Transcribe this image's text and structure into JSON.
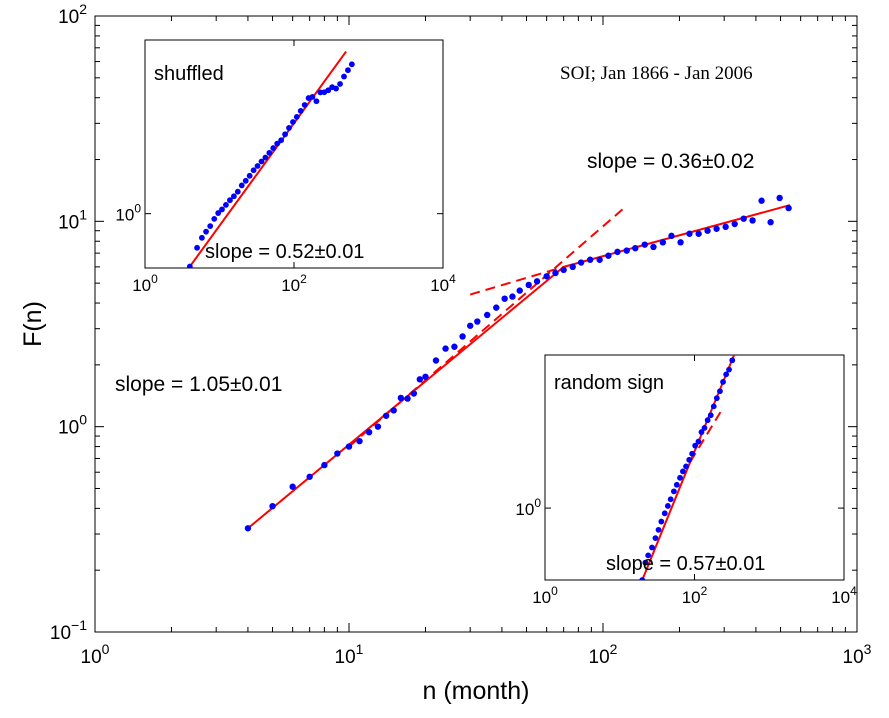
{
  "chart_data": [
    {
      "type": "scatter",
      "id": "main",
      "xlabel": "n (month)",
      "ylabel": "F(n)",
      "x_scale": "log",
      "y_scale": "log",
      "xlim": [
        1,
        1000
      ],
      "ylim": [
        0.1,
        100
      ],
      "x_ticks": [
        {
          "base": "10",
          "exp": "0",
          "value": 1
        },
        {
          "base": "10",
          "exp": "1",
          "value": 10
        },
        {
          "base": "10",
          "exp": "2",
          "value": 100
        },
        {
          "base": "10",
          "exp": "3",
          "value": 1000
        }
      ],
      "y_ticks": [
        {
          "base": "10",
          "exp": "−1",
          "value": 0.1
        },
        {
          "base": "10",
          "exp": "0",
          "value": 1
        },
        {
          "base": "10",
          "exp": "1",
          "value": 10
        },
        {
          "base": "10",
          "exp": "2",
          "value": 100
        }
      ],
      "grid": false,
      "annotations": [
        {
          "text": "SOI; Jan 1866 - Jan 2006",
          "style": "serif"
        },
        {
          "text": "slope  = 0.36±0.02"
        },
        {
          "text": "slope  = 1.05±0.01"
        }
      ],
      "points_color": "#0000ff",
      "line_color": "#ff0000",
      "series": [
        {
          "kind": "points",
          "x": [
            4,
            5,
            6,
            7,
            8,
            9,
            10,
            11,
            12,
            13,
            14,
            15,
            16,
            17,
            18,
            19,
            20,
            22,
            24,
            26,
            28,
            30,
            32,
            35,
            38,
            41,
            44,
            47,
            51,
            55,
            60,
            65,
            70,
            76,
            82,
            89,
            97,
            105,
            114,
            124,
            134,
            146,
            158,
            172,
            186,
            202,
            219,
            238,
            258,
            280,
            304,
            330,
            358,
            388,
            421,
            457,
            496,
            538
          ],
          "y": [
            0.32,
            0.41,
            0.51,
            0.57,
            0.65,
            0.74,
            0.8,
            0.85,
            0.94,
            1.0,
            1.13,
            1.2,
            1.38,
            1.37,
            1.45,
            1.7,
            1.75,
            2.1,
            2.4,
            2.45,
            2.75,
            3.1,
            3.25,
            3.5,
            3.8,
            4.2,
            4.3,
            4.6,
            4.9,
            5.1,
            5.4,
            5.6,
            5.8,
            6.0,
            6.3,
            6.5,
            6.5,
            6.8,
            7.1,
            7.2,
            7.4,
            7.7,
            7.5,
            7.9,
            8.5,
            7.9,
            8.7,
            8.7,
            9.0,
            9.2,
            9.4,
            9.7,
            10.3,
            10.1,
            12.6,
            9.9,
            13.0,
            11.6
          ]
        },
        {
          "kind": "line",
          "style": "solid",
          "x": [
            4,
            70
          ],
          "y": [
            0.32,
            6.0
          ]
        },
        {
          "kind": "line",
          "style": "dashed",
          "x": [
            10,
            120
          ],
          "y": [
            0.8,
            11.5
          ]
        },
        {
          "kind": "line",
          "style": "solid",
          "x": [
            70,
            545
          ],
          "y": [
            6.0,
            12.0
          ]
        },
        {
          "kind": "line",
          "style": "dashed",
          "x": [
            30,
            70
          ],
          "y": [
            4.4,
            6.0
          ]
        }
      ]
    },
    {
      "type": "scatter",
      "id": "inset-shuffled",
      "title": "shuffled",
      "annotation": "slope = 0.52±0.01",
      "x_scale": "log",
      "y_scale": "log",
      "xlim": [
        1,
        10000
      ],
      "x_ticks": [
        {
          "base": "10",
          "exp": "0",
          "value": 1
        },
        {
          "base": "10",
          "exp": "2",
          "value": 100
        },
        {
          "base": "10",
          "exp": "4",
          "value": 10000
        }
      ],
      "y_ticks": [
        {
          "base": "10",
          "exp": "0",
          "value": 1
        }
      ],
      "series": [
        {
          "kind": "points",
          "x": [
            4,
            5,
            5.8,
            6.6,
            7.5,
            8.5,
            9.6,
            10.8,
            12.2,
            13.8,
            15.6,
            17.6,
            19.9,
            22.5,
            25.4,
            28.7,
            32.4,
            36.6,
            41.3,
            46.7,
            52.7,
            59.5,
            67.2,
            75.9,
            85.7,
            96.8,
            109,
            123,
            139,
            157,
            177,
            200,
            226,
            255,
            288,
            325,
            367,
            415,
            469,
            530,
            598
          ],
          "y": [
            0.43,
            0.58,
            0.68,
            0.75,
            0.82,
            0.92,
            1.01,
            1.07,
            1.15,
            1.24,
            1.32,
            1.42,
            1.57,
            1.69,
            1.83,
            2.0,
            2.14,
            2.3,
            2.45,
            2.64,
            2.85,
            3.06,
            3.23,
            3.55,
            3.93,
            4.32,
            4.69,
            5.16,
            5.67,
            6.33,
            6.45,
            6.02,
            6.93,
            6.95,
            7.17,
            7.53,
            7.37,
            7.93,
            8.93,
            9.88,
            10.85
          ]
        },
        {
          "kind": "line",
          "style": "solid",
          "x": [
            4,
            500
          ],
          "y": [
            0.43,
            13.3
          ]
        }
      ]
    },
    {
      "type": "scatter",
      "id": "inset-random-sign",
      "title": "random sign",
      "annotation": "slope = 0.57±0.01",
      "x_scale": "log",
      "y_scale": "log",
      "xlim": [
        1,
        10000
      ],
      "x_ticks": [
        {
          "base": "10",
          "exp": "0",
          "value": 1
        },
        {
          "base": "10",
          "exp": "2",
          "value": 100
        },
        {
          "base": "10",
          "exp": "4",
          "value": 10000
        }
      ],
      "y_ticks": [
        {
          "base": "10",
          "exp": "0",
          "value": 1
        }
      ],
      "series": [
        {
          "kind": "points",
          "x": [
            20,
            22,
            24,
            27,
            30,
            33,
            36,
            40,
            44,
            48,
            53,
            58,
            64,
            70,
            77,
            85,
            93,
            102,
            113,
            124,
            136,
            150,
            165,
            181,
            199,
            219,
            241,
            265,
            290,
            320
          ],
          "y": [
            0.37,
            0.47,
            0.52,
            0.58,
            0.66,
            0.74,
            0.83,
            0.93,
            1.03,
            1.13,
            1.26,
            1.38,
            1.52,
            1.66,
            1.78,
            1.95,
            2.12,
            2.37,
            2.51,
            2.86,
            3.03,
            3.37,
            3.61,
            4.08,
            4.57,
            5.03,
            5.72,
            6.35,
            6.78,
            7.71
          ]
        },
        {
          "kind": "line",
          "style": "solid",
          "x": [
            20,
            88
          ],
          "y": [
            0.37,
            1.9
          ]
        },
        {
          "kind": "line",
          "style": "dashed",
          "x": [
            88,
            225
          ],
          "y": [
            1.9,
            3.8
          ]
        },
        {
          "kind": "line",
          "style": "solid",
          "x": [
            88,
            350
          ],
          "y": [
            1.9,
            8.6
          ]
        }
      ]
    }
  ]
}
